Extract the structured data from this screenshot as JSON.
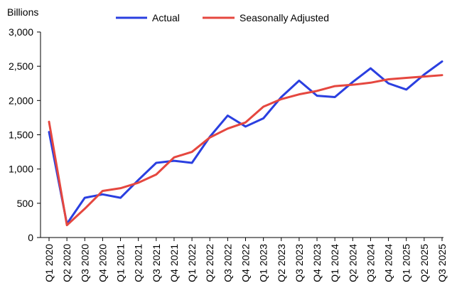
{
  "chart_data": {
    "type": "line",
    "title": "",
    "ylabel": "Billions",
    "xlabel": "",
    "ylim": [
      0,
      3000
    ],
    "yticks": [
      0,
      500,
      1000,
      1500,
      2000,
      2500,
      3000
    ],
    "ytick_labels": [
      "0",
      "500",
      "1,000",
      "1,500",
      "2,000",
      "2,500",
      "3,000"
    ],
    "grid": false,
    "legend_position": "top-center",
    "categories": [
      "Q1 2020",
      "Q2 2020",
      "Q3 2020",
      "Q4 2020",
      "Q1 2021",
      "Q2 2021",
      "Q3 2021",
      "Q4 2021",
      "Q1 2022",
      "Q2 2022",
      "Q3 2022",
      "Q4 2022",
      "Q1 2023",
      "Q2 2023",
      "Q3 2023",
      "Q4 2023",
      "Q1 2024",
      "Q2 2024",
      "Q3 2024",
      "Q4 2024",
      "Q1 2025",
      "Q2 2025",
      "Q3 2025"
    ],
    "series": [
      {
        "name": "Actual",
        "color": "#2a3fe0",
        "values": [
          1540,
          200,
          580,
          630,
          580,
          840,
          1090,
          1120,
          1090,
          1470,
          1780,
          1620,
          1740,
          2050,
          2290,
          2070,
          2050,
          2270,
          2470,
          2250,
          2160,
          2380,
          2570
        ]
      },
      {
        "name": "Seasonally Adjusted",
        "color": "#e5473f",
        "values": [
          1690,
          180,
          420,
          680,
          720,
          800,
          920,
          1170,
          1250,
          1460,
          1590,
          1680,
          1910,
          2020,
          2090,
          2140,
          2210,
          2230,
          2260,
          2310,
          2330,
          2350,
          2370
        ]
      }
    ]
  }
}
